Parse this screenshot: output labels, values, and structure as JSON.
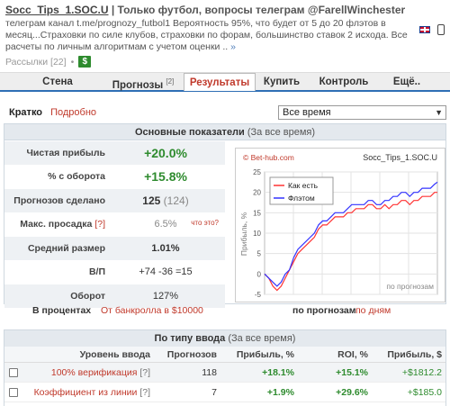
{
  "header": {
    "title": "Socc_Tips_1.SOC.U",
    "separator": "|",
    "subtitle": "Только футбол, вопросы телеграм @FarellWinchester",
    "description": "телеграм канал t.me/prognozy_futbol1 Вероятность 95%, что будет от 5 до 20 флэтов в месяц...Страховки по силе клубов, страховки по форам, большинство ставок 2 исхода. Все расчеты по личным алгоритмам с учетом оценки ..",
    "more": "»",
    "subscriptions": "Рассылки [22]",
    "dot": "•",
    "dollar": "$",
    "icons": [
      "uk-flag-icon",
      "mobile-icon"
    ]
  },
  "nav": {
    "items": [
      {
        "label": "Стена",
        "count": ""
      },
      {
        "label": "Прогнозы",
        "count": "[2]"
      },
      {
        "label": "Результаты",
        "count": ""
      },
      {
        "label": "Купить",
        "count": ""
      },
      {
        "label": "Контроль",
        "count": ""
      },
      {
        "label": "Ещё..",
        "count": ""
      }
    ],
    "active": "Результаты"
  },
  "mode": {
    "short": "Кратко",
    "detailed": "Подробно"
  },
  "period": {
    "selected": "Все время"
  },
  "main_panel": {
    "title": "Основные показатели",
    "subtitle": "(За все время)",
    "stats": [
      {
        "label": "Чистая прибыль",
        "value": "+20.0%"
      },
      {
        "label": "% с оборота",
        "value": "+15.8%"
      },
      {
        "label": "Прогнозов сделано",
        "value": "125",
        "extra": "(124)"
      },
      {
        "label": "Макс. просадка",
        "hint": "[?]",
        "value": "6.5%",
        "note": "что это?"
      },
      {
        "label": "Средний размер",
        "value": "1.01%"
      },
      {
        "label": "В/П",
        "value": "+74 -36 =15"
      },
      {
        "label": "Оборот",
        "value": "127%"
      }
    ],
    "in_percent": "В процентах",
    "from_bank": "От банкролла в $10000",
    "by_predictions": "по прогнозам",
    "by_days": "по дням"
  },
  "chart_data": {
    "type": "line",
    "watermark": "© Bet-hub.com",
    "title": "Socc_Tips_1.SOC.U",
    "ylabel": "Прибыль, %",
    "xlabel": "по прогнозам",
    "ylim": [
      -5,
      25
    ],
    "yticks": [
      -5,
      0,
      5,
      10,
      15,
      20,
      25
    ],
    "legend_position": "top-left",
    "colors": {
      "as_is": "#ff3333",
      "flat": "#3333ff"
    },
    "x": [
      0,
      3,
      6,
      9,
      12,
      15,
      18,
      21,
      24,
      27,
      30,
      33,
      36,
      39,
      42,
      45,
      48,
      51,
      54,
      57,
      60,
      63,
      66,
      69,
      72,
      75,
      78,
      81,
      84,
      87,
      90,
      93,
      96,
      99,
      102,
      105,
      108,
      111,
      114,
      117,
      120,
      123,
      125
    ],
    "series": [
      {
        "name": "Как есть",
        "values": [
          0,
          -1,
          -3,
          -4,
          -3,
          -1,
          1,
          3,
          5,
          6,
          7,
          8,
          9,
          11,
          12,
          12,
          13,
          14,
          14,
          14,
          15,
          15,
          16,
          16,
          16,
          17,
          17,
          16,
          16,
          17,
          16,
          17,
          17,
          18,
          18,
          17,
          18,
          18,
          19,
          19,
          19,
          20,
          20
        ]
      },
      {
        "name": "Флэтом",
        "values": [
          0,
          -1,
          -2,
          -3,
          -2,
          0,
          1,
          4,
          6,
          7,
          8,
          9,
          10,
          12,
          13,
          13,
          14,
          15,
          15,
          15,
          16,
          17,
          17,
          17,
          17,
          18,
          18,
          17,
          17,
          18,
          18,
          19,
          19,
          20,
          20,
          19,
          20,
          20,
          21,
          21,
          21,
          22,
          22.5
        ]
      }
    ]
  },
  "entry_panel": {
    "title": "По типу ввода",
    "subtitle": "(За все время)",
    "columns": [
      "Уровень ввода",
      "Прогнозов",
      "Прибыль, %",
      "ROI, %",
      "Прибыль, $"
    ],
    "rows": [
      {
        "level": "100% верификация",
        "hint": "[?]",
        "count": "118",
        "profit_pct": "+18.1%",
        "roi": "+15.1%",
        "profit_usd": "+$1812.2"
      },
      {
        "level": "Коэффициент из линии",
        "hint": "[?]",
        "count": "7",
        "profit_pct": "+1.9%",
        "roi": "+29.6%",
        "profit_usd": "+$185.0"
      }
    ]
  }
}
